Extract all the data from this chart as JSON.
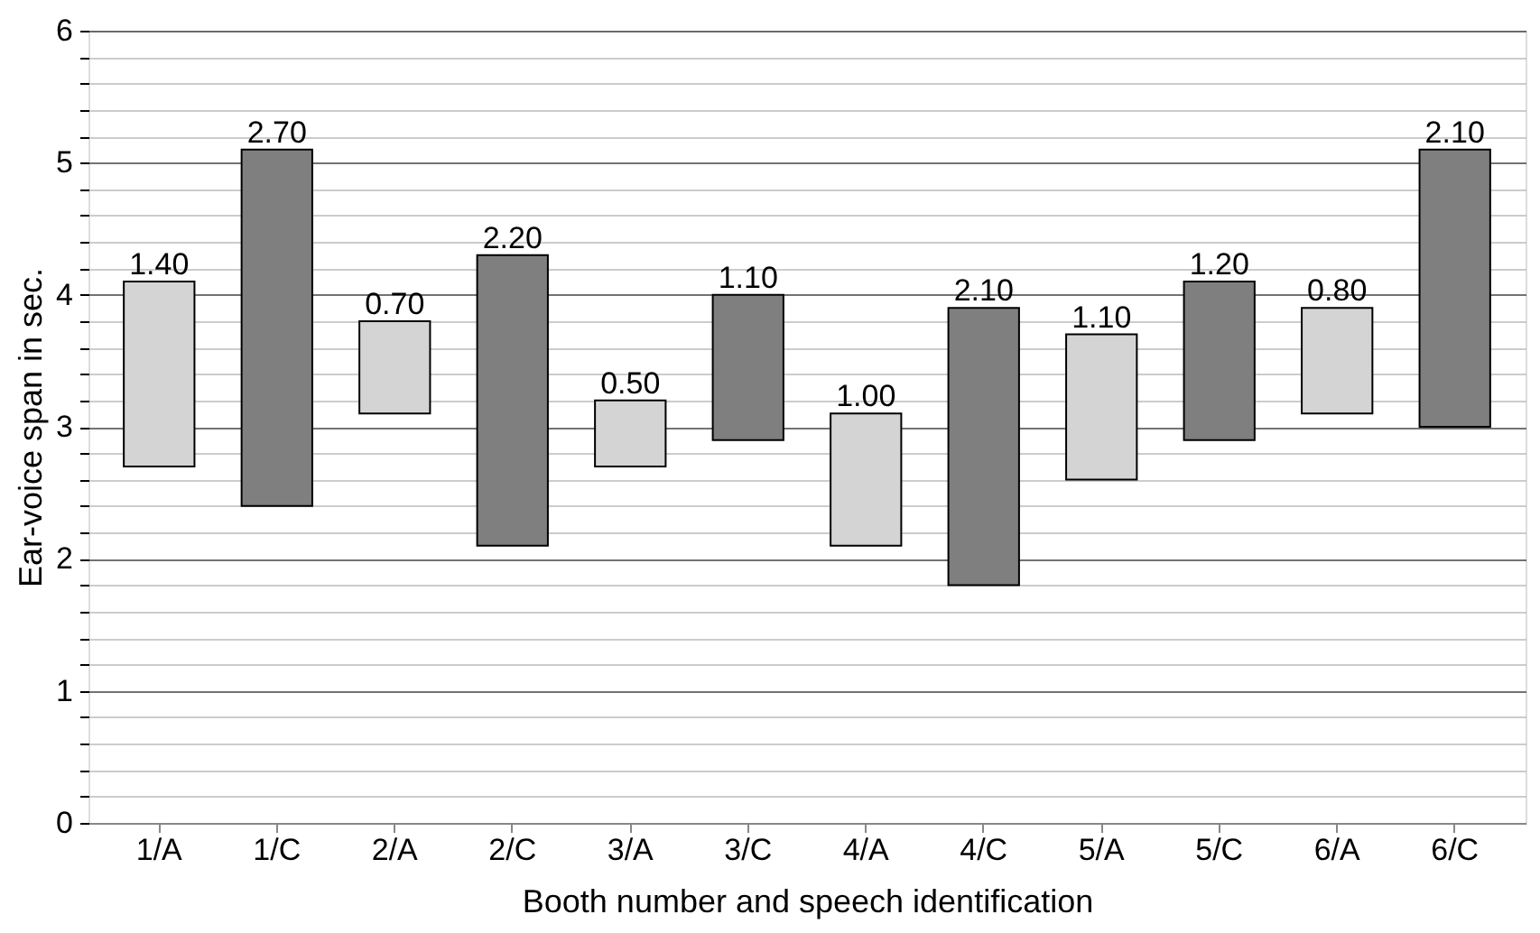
{
  "chart_data": {
    "type": "bar",
    "xlabel": "Booth number and speech identification",
    "ylabel": "Ear-voice span in sec.",
    "categories": [
      "1/A",
      "1/C",
      "2/A",
      "2/C",
      "3/A",
      "3/C",
      "4/A",
      "4/C",
      "5/A",
      "5/C",
      "6/A",
      "6/C"
    ],
    "base": [
      2.7,
      2.4,
      3.1,
      2.1,
      2.7,
      2.9,
      2.1,
      1.8,
      2.6,
      2.9,
      3.1,
      3.0
    ],
    "values": [
      1.4,
      2.7,
      0.7,
      2.2,
      0.5,
      1.1,
      1.0,
      2.1,
      1.1,
      1.2,
      0.8,
      2.1
    ],
    "value_labels": [
      "1.40",
      "2.70",
      "0.70",
      "2.20",
      "0.50",
      "1.10",
      "1.00",
      "2.10",
      "1.10",
      "1.20",
      "0.80",
      "2.10"
    ],
    "colors": [
      "#d4d4d4",
      "#7f7f7f",
      "#d4d4d4",
      "#7f7f7f",
      "#d4d4d4",
      "#7f7f7f",
      "#d4d4d4",
      "#7f7f7f",
      "#d4d4d4",
      "#7f7f7f",
      "#d4d4d4",
      "#7f7f7f"
    ],
    "ylim": [
      0,
      6
    ],
    "yticks": [
      0,
      {
        "value": 0.2,
        "label": null
      },
      {
        "value": 0.4,
        "label": null
      },
      {
        "value": 0.6,
        "label": null
      },
      {
        "value": 0.8,
        "label": null
      },
      1,
      {
        "value": 1.2,
        "label": null
      },
      {
        "value": 1.4,
        "label": null
      },
      {
        "value": 1.6,
        "label": null
      },
      {
        "value": 1.8,
        "label": null
      },
      2,
      {
        "value": 2.2,
        "label": null
      },
      {
        "value": 2.4,
        "label": null
      },
      {
        "value": 2.6,
        "label": null
      },
      {
        "value": 2.8,
        "label": null
      },
      3,
      {
        "value": 3.2,
        "label": null
      },
      {
        "value": 3.4,
        "label": null
      },
      {
        "value": 3.6,
        "label": null
      },
      {
        "value": 3.8,
        "label": null
      },
      4,
      {
        "value": 4.2,
        "label": null
      },
      {
        "value": 4.4,
        "label": null
      },
      {
        "value": 4.6,
        "label": null
      },
      {
        "value": 4.8,
        "label": null
      },
      5,
      {
        "value": 5.2,
        "label": null
      },
      {
        "value": 5.4,
        "label": null
      },
      {
        "value": 5.6,
        "label": null
      },
      {
        "value": 5.8,
        "label": null
      },
      6
    ],
    "grid": "y"
  }
}
